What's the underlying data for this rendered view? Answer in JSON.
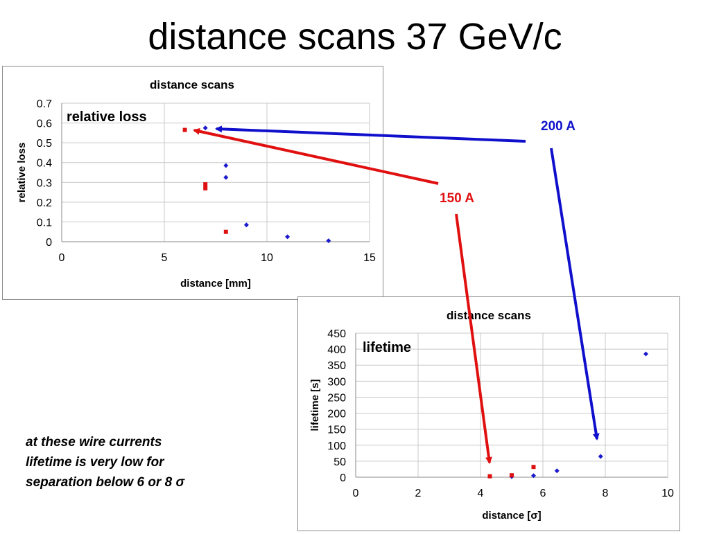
{
  "slide": {
    "title": "distance scans 37 GeV/c",
    "note_lines": [
      "at these wire currents",
      "lifetime is very low for",
      "separation below 6 or 8 σ"
    ]
  },
  "annotations": {
    "label_200A": "200 A",
    "label_150A": "150 A",
    "color_200A": "#1010cc",
    "color_150A": "#e01010"
  },
  "chart_data": [
    {
      "type": "scatter",
      "title": "distance scans",
      "inner_label": "relative loss",
      "xlabel": "distance [mm]",
      "ylabel": "relative loss",
      "xlim": [
        0,
        15
      ],
      "ylim": [
        0,
        0.7
      ],
      "xticks": [
        "0",
        "5",
        "10",
        "15"
      ],
      "yticks": [
        "0",
        "0.1",
        "0.2",
        "0.3",
        "0.4",
        "0.5",
        "0.6",
        "0.7"
      ],
      "grid": true,
      "legend": "none",
      "series": [
        {
          "color": "#1a1acc",
          "marker": "diamond",
          "points": [
            [
              7,
              0.575
            ],
            [
              8,
              0.385
            ],
            [
              8,
              0.325
            ],
            [
              9,
              0.085
            ],
            [
              11,
              0.025
            ],
            [
              13,
              0.005
            ]
          ]
        },
        {
          "color": "#dd1111",
          "marker": "square",
          "points": [
            [
              6,
              0.565
            ],
            [
              7,
              0.29
            ],
            [
              7,
              0.27
            ],
            [
              8,
              0.05
            ]
          ]
        }
      ]
    },
    {
      "type": "scatter",
      "title": "distance scans",
      "inner_label": "lifetime",
      "xlabel": "distance [σ]",
      "ylabel": "lifetime [s]",
      "xlim": [
        0,
        10
      ],
      "ylim": [
        0,
        450
      ],
      "xticks": [
        "0",
        "2",
        "4",
        "6",
        "8",
        "10"
      ],
      "yticks": [
        "0",
        "50",
        "100",
        "150",
        "200",
        "250",
        "300",
        "350",
        "400",
        "450"
      ],
      "grid": true,
      "legend": "none",
      "series": [
        {
          "color": "#1a1acc",
          "marker": "diamond",
          "points": [
            [
              9.3,
              385
            ],
            [
              7.85,
              65
            ],
            [
              6.45,
              20
            ],
            [
              5.7,
              5
            ],
            [
              5.0,
              2
            ]
          ]
        },
        {
          "color": "#dd1111",
          "marker": "square",
          "points": [
            [
              4.3,
              3
            ],
            [
              5.0,
              6
            ],
            [
              5.7,
              32
            ]
          ]
        }
      ]
    }
  ]
}
